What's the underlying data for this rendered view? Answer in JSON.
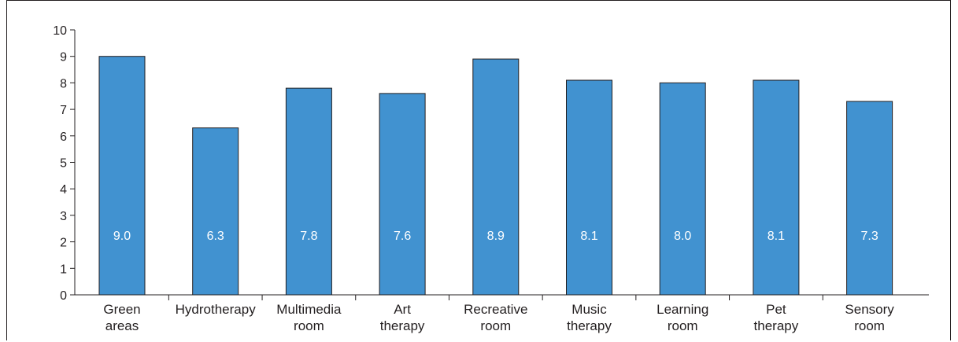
{
  "chart_data": {
    "type": "bar",
    "categories": [
      [
        "Green",
        "areas"
      ],
      [
        "Hydrotherapy"
      ],
      [
        "Multimedia",
        "room"
      ],
      [
        "Art",
        "therapy"
      ],
      [
        "Recreative",
        "room"
      ],
      [
        "Music",
        "therapy"
      ],
      [
        "Learning",
        "room"
      ],
      [
        "Pet",
        "therapy"
      ],
      [
        "Sensory",
        "room"
      ]
    ],
    "values": [
      9.0,
      6.3,
      7.8,
      7.6,
      8.9,
      8.1,
      8.0,
      8.1,
      7.3
    ],
    "data_labels": [
      "9.0",
      "6.3",
      "7.8",
      "7.6",
      "8.9",
      "8.1",
      "8.0",
      "8.1",
      "7.3"
    ],
    "y_ticks": [
      "0",
      "1",
      "2",
      "3",
      "4",
      "5",
      "6",
      "7",
      "8",
      "9",
      "10"
    ],
    "ylim": [
      0,
      10
    ],
    "title": "",
    "xlabel": "",
    "ylabel": "",
    "bar_color": "#4192d0",
    "grid": false,
    "legend": "none"
  }
}
